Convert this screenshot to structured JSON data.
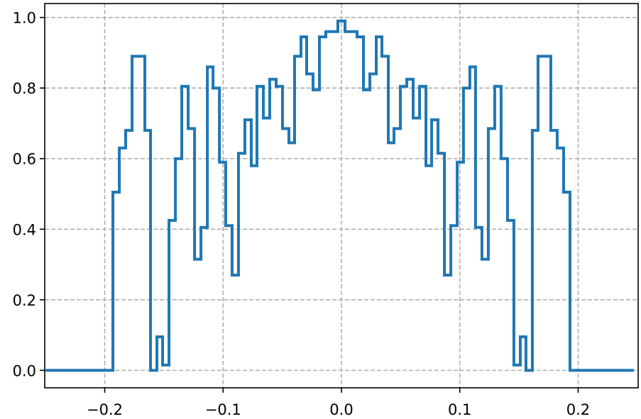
{
  "chart_data": {
    "type": "step",
    "color": "#1f77b4",
    "grid": true,
    "x": [
      -0.25,
      -0.1931,
      -0.1877,
      -0.1823,
      -0.1769,
      -0.1661,
      -0.1613,
      -0.1559,
      -0.1511,
      -0.1457,
      -0.1403,
      -0.1349,
      -0.1295,
      -0.1241,
      -0.1187,
      -0.1133,
      -0.1085,
      -0.1031,
      -0.0978,
      -0.0924,
      -0.087,
      -0.0816,
      -0.0762,
      -0.0714,
      -0.066,
      -0.0606,
      -0.0552,
      -0.0498,
      -0.0444,
      -0.0396,
      -0.0342,
      -0.0294,
      -0.024,
      -0.0186,
      -0.0132,
      -0.003,
      0.003,
      0.0132,
      0.0186,
      0.024,
      0.0294,
      0.0342,
      0.0396,
      0.0444,
      0.0498,
      0.0552,
      0.0606,
      0.066,
      0.0714,
      0.0762,
      0.0816,
      0.087,
      0.0924,
      0.0978,
      0.1031,
      0.1085,
      0.1133,
      0.1187,
      0.1241,
      0.1295,
      0.1349,
      0.1403,
      0.1457,
      0.1511,
      0.1559,
      0.1613,
      0.1661,
      0.1769,
      0.1823,
      0.1877,
      0.1931,
      0.247
    ],
    "values": [
      0,
      0.505,
      0.63,
      0.68,
      0.89,
      0.68,
      0,
      0.095,
      0.015,
      0.425,
      0.6,
      0.805,
      0.685,
      0.315,
      0.405,
      0.86,
      0.8,
      0.59,
      0.41,
      0.27,
      0.615,
      0.71,
      0.58,
      0.805,
      0.715,
      0.825,
      0.805,
      0.685,
      0.645,
      0.89,
      0.945,
      0.84,
      0.795,
      0.945,
      0.96,
      0.99,
      0.96,
      0.945,
      0.795,
      0.84,
      0.945,
      0.89,
      0.645,
      0.685,
      0.805,
      0.825,
      0.715,
      0.805,
      0.58,
      0.71,
      0.615,
      0.27,
      0.41,
      0.59,
      0.8,
      0.86,
      0.405,
      0.315,
      0.685,
      0.805,
      0.6,
      0.425,
      0.015,
      0.095,
      0,
      0.68,
      0.89,
      0.68,
      0.63,
      0.505,
      0,
      0
    ],
    "xlim": [
      -0.2507,
      0.2507
    ],
    "ylim": [
      -0.0495,
      1.0395
    ],
    "xticks": [
      {
        "value": -0.2,
        "label": "−0.2"
      },
      {
        "value": -0.1,
        "label": "−0.1"
      },
      {
        "value": 0,
        "label": "0.0"
      },
      {
        "value": 0.1,
        "label": "0.1"
      },
      {
        "value": 0.2,
        "label": "0.2"
      }
    ],
    "yticks": [
      {
        "value": 0,
        "label": "0.0"
      },
      {
        "value": 0.2,
        "label": "0.2"
      },
      {
        "value": 0.4,
        "label": "0.4"
      },
      {
        "value": 0.6,
        "label": "0.6"
      },
      {
        "value": 0.8,
        "label": "0.8"
      },
      {
        "value": 1,
        "label": "1.0"
      }
    ]
  }
}
